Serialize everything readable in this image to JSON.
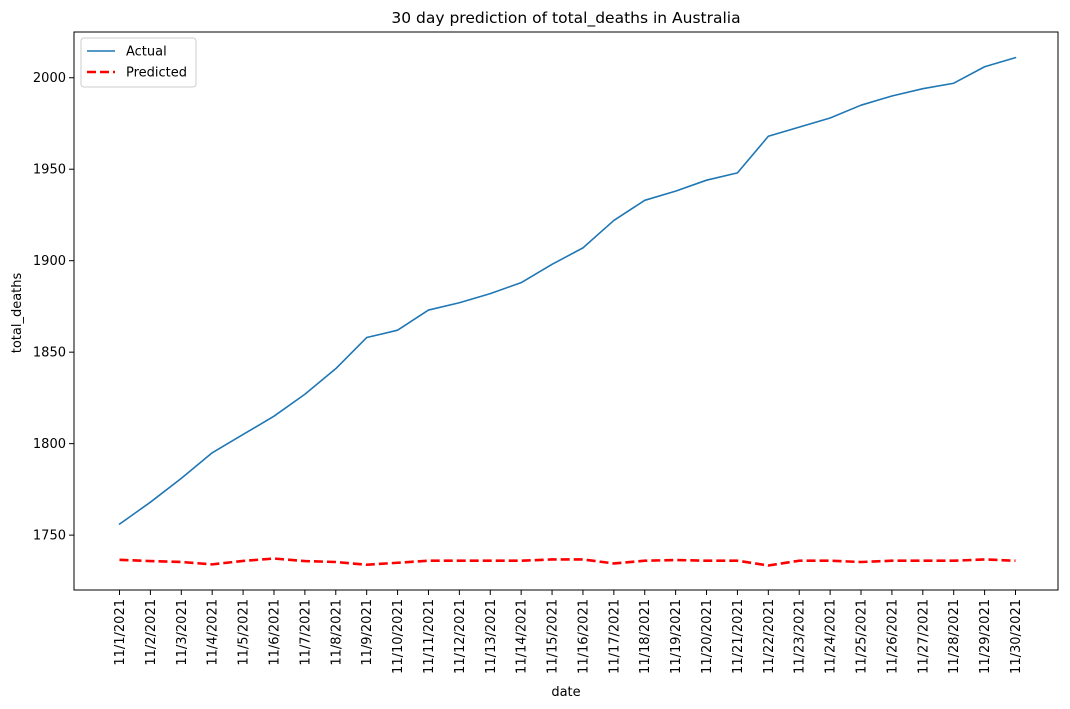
{
  "chart_data": {
    "type": "line",
    "title": "30 day prediction of total_deaths in Australia",
    "xlabel": "date",
    "ylabel": "total_deaths",
    "x": [
      "11/1/2021",
      "11/2/2021",
      "11/3/2021",
      "11/4/2021",
      "11/5/2021",
      "11/6/2021",
      "11/7/2021",
      "11/8/2021",
      "11/9/2021",
      "11/10/2021",
      "11/11/2021",
      "11/12/2021",
      "11/13/2021",
      "11/14/2021",
      "11/15/2021",
      "11/16/2021",
      "11/17/2021",
      "11/18/2021",
      "11/19/2021",
      "11/20/2021",
      "11/21/2021",
      "11/22/2021",
      "11/23/2021",
      "11/24/2021",
      "11/25/2021",
      "11/26/2021",
      "11/27/2021",
      "11/28/2021",
      "11/29/2021",
      "11/30/2021"
    ],
    "ylim": [
      1720,
      2025
    ],
    "yticks": [
      1750,
      1800,
      1850,
      1900,
      1950,
      2000
    ],
    "grid": false,
    "legend": "upper-left",
    "series": [
      {
        "name": "Actual",
        "color": "#1f77b4",
        "style": "solid",
        "values": [
          1756,
          1768,
          1781,
          1795,
          1805,
          1815,
          1827,
          1841,
          1858,
          1862,
          1873,
          1877,
          1882,
          1888,
          1898,
          1907,
          1922,
          1933,
          1938,
          1944,
          1948,
          1968,
          1973,
          1978,
          1985,
          1990,
          1994,
          1997,
          2006,
          2011
        ]
      },
      {
        "name": "Predicted",
        "color": "#ff0000",
        "style": "dashed",
        "values": [
          1736.5,
          1735.8,
          1735.3,
          1734.0,
          1735.9,
          1737.2,
          1735.8,
          1735.3,
          1733.8,
          1734.9,
          1736.0,
          1736.0,
          1736.0,
          1736.0,
          1736.7,
          1736.7,
          1734.5,
          1736.0,
          1736.4,
          1736.0,
          1736.0,
          1733.4,
          1736.0,
          1736.0,
          1735.3,
          1736.0,
          1736.0,
          1736.0,
          1736.7,
          1736.0
        ]
      }
    ]
  }
}
